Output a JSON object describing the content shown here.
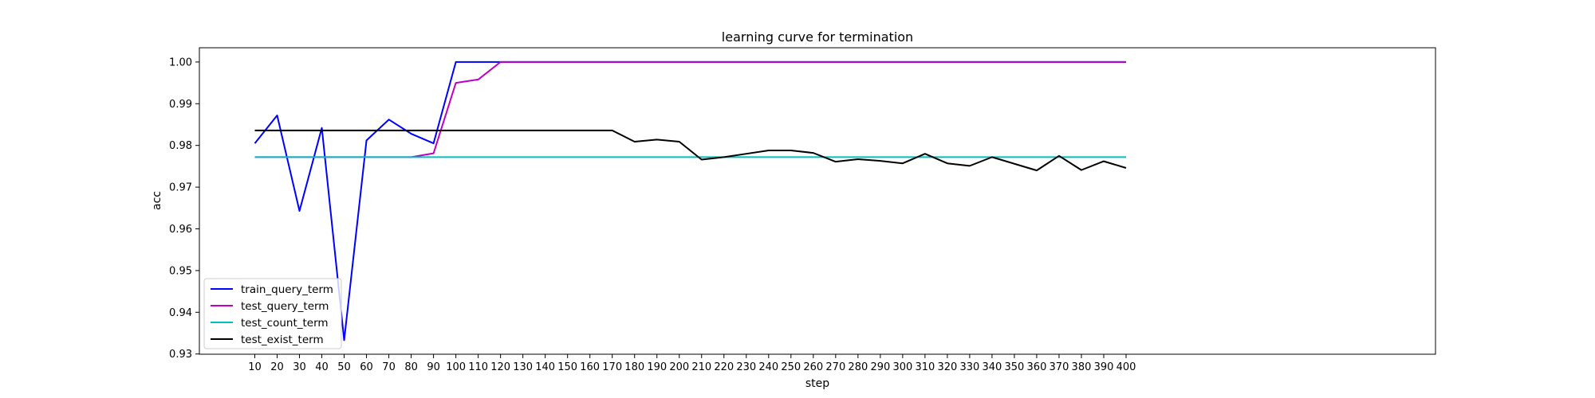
{
  "chart_data": {
    "type": "line",
    "title": "learning curve for termination",
    "xlabel": "step",
    "ylabel": "acc",
    "ylim": [
      0.93,
      1.0
    ],
    "yticks": [
      "0.93",
      "0.94",
      "0.95",
      "0.96",
      "0.97",
      "0.98",
      "0.99",
      "1.00"
    ],
    "x": [
      10,
      20,
      30,
      40,
      50,
      60,
      70,
      80,
      90,
      100,
      110,
      120,
      130,
      140,
      150,
      160,
      170,
      180,
      190,
      200,
      210,
      220,
      230,
      240,
      250,
      260,
      270,
      280,
      290,
      300,
      310,
      320,
      330,
      340,
      350,
      360,
      370,
      380,
      390,
      400
    ],
    "grid": false,
    "legend_position": "lower-left",
    "series": [
      {
        "name": "train_query_term",
        "color": "#0000ff",
        "values": [
          0.9805,
          0.9872,
          0.9643,
          0.9842,
          0.9333,
          0.9812,
          0.9862,
          0.9828,
          0.9805,
          1.0,
          1.0,
          1.0,
          1.0,
          1.0,
          1.0,
          1.0,
          1.0,
          1.0,
          1.0,
          1.0,
          1.0,
          1.0,
          1.0,
          1.0,
          1.0,
          1.0,
          1.0,
          1.0,
          1.0,
          1.0,
          1.0,
          1.0,
          1.0,
          1.0,
          1.0,
          1.0,
          1.0,
          1.0,
          1.0,
          1.0
        ]
      },
      {
        "name": "test_query_term",
        "color": "#bf00bf",
        "values": [
          0.9772,
          0.9772,
          0.9772,
          0.9772,
          0.9772,
          0.9772,
          0.9772,
          0.9772,
          0.9781,
          0.995,
          0.9958,
          1.0,
          1.0,
          1.0,
          1.0,
          1.0,
          1.0,
          1.0,
          1.0,
          1.0,
          1.0,
          1.0,
          1.0,
          1.0,
          1.0,
          1.0,
          1.0,
          1.0,
          1.0,
          1.0,
          1.0,
          1.0,
          1.0,
          1.0,
          1.0,
          1.0,
          1.0,
          1.0,
          1.0,
          1.0
        ]
      },
      {
        "name": "test_count_term",
        "color": "#00bfbf",
        "values": [
          0.9772,
          0.9772,
          0.9772,
          0.9772,
          0.9772,
          0.9772,
          0.9772,
          0.9772,
          0.9772,
          0.9772,
          0.9772,
          0.9772,
          0.9772,
          0.9772,
          0.9772,
          0.9772,
          0.9772,
          0.9772,
          0.9772,
          0.9772,
          0.9772,
          0.9772,
          0.9772,
          0.9772,
          0.9772,
          0.9772,
          0.9772,
          0.9772,
          0.9772,
          0.9772,
          0.9772,
          0.9772,
          0.9772,
          0.9772,
          0.9772,
          0.9772,
          0.9772,
          0.9772,
          0.9772,
          0.9772
        ]
      },
      {
        "name": "test_exist_term",
        "color": "#000000",
        "values": [
          0.9836,
          0.9836,
          0.9836,
          0.9836,
          0.9836,
          0.9836,
          0.9836,
          0.9836,
          0.9836,
          0.9836,
          0.9836,
          0.9836,
          0.9836,
          0.9836,
          0.9836,
          0.9836,
          0.9836,
          0.9809,
          0.9814,
          0.9809,
          0.9766,
          0.9772,
          0.978,
          0.9788,
          0.9788,
          0.9782,
          0.9761,
          0.9767,
          0.9763,
          0.9757,
          0.978,
          0.9757,
          0.9751,
          0.9772,
          0.9756,
          0.974,
          0.9775,
          0.9741,
          0.9762,
          0.9746
        ]
      }
    ]
  }
}
